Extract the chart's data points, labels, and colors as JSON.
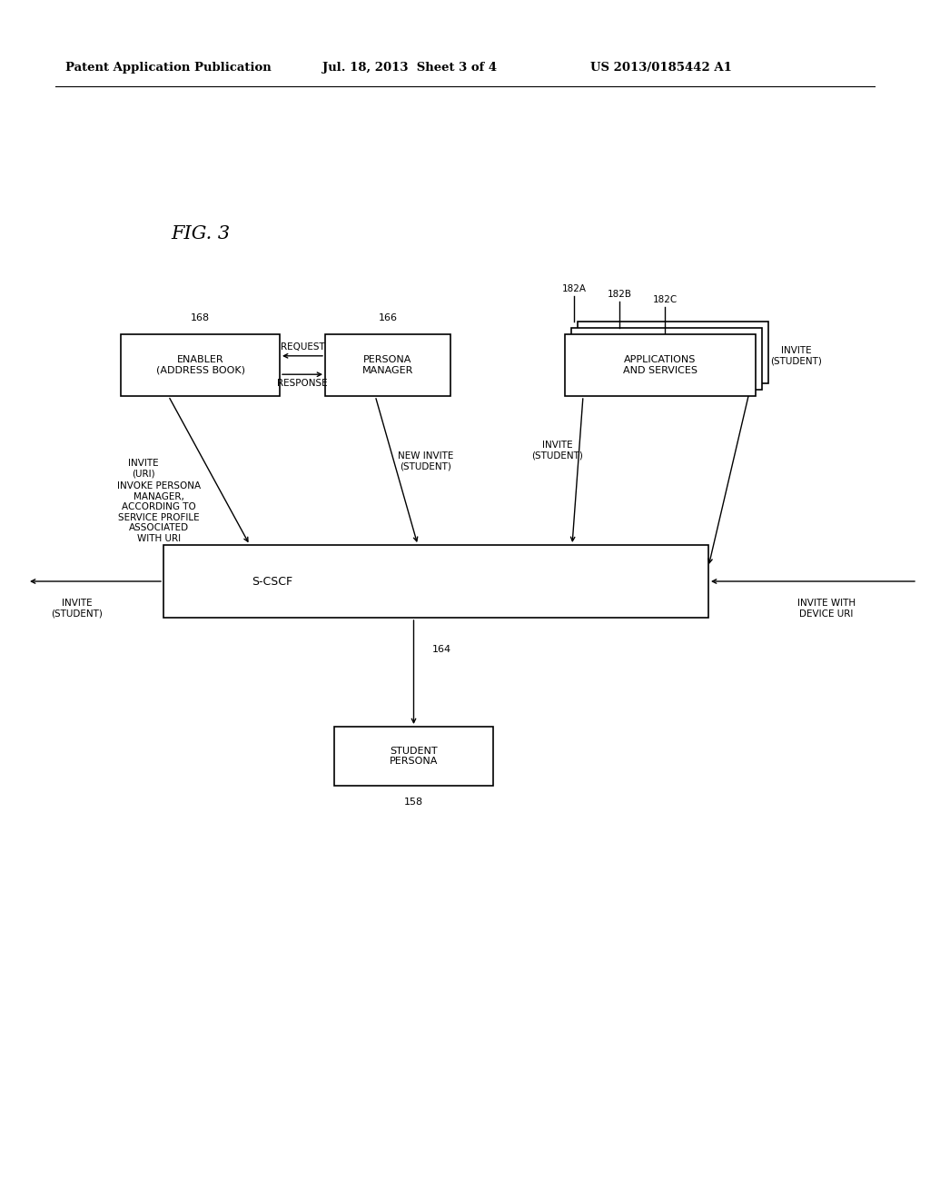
{
  "bg_color": "#ffffff",
  "header_left": "Patent Application Publication",
  "header_mid": "Jul. 18, 2013  Sheet 3 of 4",
  "header_right": "US 2013/0185442 A1",
  "fig_label": "FIG. 3"
}
